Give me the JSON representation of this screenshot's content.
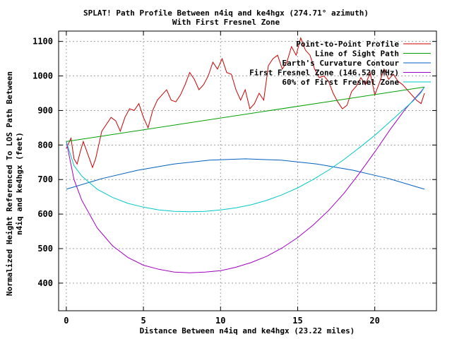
{
  "chart_data": {
    "type": "line",
    "title": "SPLAT! Path Profile Between n4iq and ke4hgx (274.71° azimuth)",
    "subtitle": "With First Fresnel Zone",
    "xlabel": "Distance Between n4iq and ke4hgx (23.22 miles)",
    "ylabel_line1": "Normalized Height Referenced To LOS Path Between",
    "ylabel_line2": "n4iq and ke4hgx (feet)",
    "xlim": [
      -0.5,
      24
    ],
    "ylim": [
      320,
      1130
    ],
    "x_ticks": [
      0,
      5,
      10,
      15,
      20
    ],
    "y_ticks": [
      400,
      500,
      600,
      700,
      800,
      900,
      1000,
      1100
    ],
    "grid": true,
    "legend_position": "top-right",
    "colors": {
      "profile": "#cc0000",
      "los": "#00a000",
      "curvature": "#0060c0",
      "fresnel": "#a000c0",
      "fresnel60": "#00c8c8"
    },
    "series": [
      {
        "name": "Point-to-Point Profile",
        "color": "#cc0000",
        "x": [
          0,
          0.3,
          0.5,
          0.7,
          0.9,
          1.1,
          1.3,
          1.5,
          1.7,
          1.9,
          2.1,
          2.3,
          2.6,
          2.9,
          3.2,
          3.5,
          3.8,
          4.1,
          4.4,
          4.7,
          5.0,
          5.3,
          5.6,
          5.9,
          6.2,
          6.5,
          6.8,
          7.1,
          7.4,
          7.7,
          8.0,
          8.3,
          8.6,
          8.9,
          9.2,
          9.5,
          9.8,
          10.1,
          10.4,
          10.7,
          11.0,
          11.3,
          11.6,
          11.9,
          12.2,
          12.5,
          12.8,
          13.1,
          13.4,
          13.7,
          14.0,
          14.3,
          14.6,
          14.9,
          15.2,
          15.5,
          15.8,
          16.1,
          16.4,
          16.7,
          17.0,
          17.3,
          17.6,
          17.9,
          18.2,
          18.5,
          18.8,
          19.1,
          19.4,
          19.7,
          20.0,
          20.3,
          20.6,
          20.9,
          21.2,
          21.5,
          21.8,
          22.1,
          22.4,
          22.7,
          23.0,
          23.22
        ],
        "values": [
          790,
          820,
          760,
          745,
          780,
          810,
          785,
          760,
          735,
          760,
          800,
          840,
          860,
          880,
          870,
          840,
          880,
          905,
          900,
          920,
          880,
          850,
          900,
          930,
          945,
          960,
          930,
          925,
          945,
          975,
          1010,
          990,
          960,
          975,
          1000,
          1040,
          1020,
          1050,
          1010,
          1005,
          960,
          930,
          960,
          905,
          920,
          950,
          930,
          1030,
          1050,
          1060,
          1020,
          1040,
          1085,
          1060,
          1110,
          1075,
          1060,
          1020,
          995,
          1000,
          985,
          950,
          925,
          905,
          915,
          955,
          970,
          995,
          975,
          1010,
          945,
          980,
          1020,
          990,
          1005,
          985,
          975,
          960,
          945,
          930,
          920,
          950
        ]
      },
      {
        "name": "Line of Sight Path",
        "color": "#00a000",
        "x": [
          0,
          23.22
        ],
        "values": [
          810,
          968
        ]
      },
      {
        "name": "Earth's Curvature Contour",
        "color": "#0060c0",
        "x": [
          0,
          2.32,
          4.64,
          6.97,
          9.29,
          11.61,
          13.93,
          16.25,
          18.58,
          20.9,
          23.22
        ],
        "values": [
          672,
          703,
          727,
          745,
          756,
          760,
          756,
          745,
          727,
          703,
          672
        ]
      },
      {
        "name": "First Fresnel Zone (146.520 MHz)",
        "color": "#a000c0",
        "x": [
          0,
          0.5,
          1.0,
          2.0,
          3.0,
          4.0,
          5.0,
          6.0,
          7.0,
          8.0,
          9.0,
          10.0,
          11.0,
          12.0,
          13.0,
          14.0,
          15.0,
          16.0,
          17.0,
          18.0,
          19.0,
          20.0,
          21.0,
          22.0,
          22.5,
          23.0,
          23.22
        ],
        "values": [
          810,
          700,
          640,
          560,
          508,
          474,
          452,
          440,
          432,
          430,
          432,
          436,
          446,
          460,
          478,
          502,
          532,
          568,
          610,
          660,
          718,
          780,
          845,
          905,
          930,
          955,
          968
        ]
      },
      {
        "name": "60% of First Fresnel Zone",
        "color": "#00c8c8",
        "x": [
          0,
          0.5,
          1.0,
          2.0,
          3.0,
          4.0,
          5.0,
          6.0,
          7.0,
          8.0,
          9.0,
          10.0,
          11.0,
          12.0,
          13.0,
          14.0,
          15.0,
          16.0,
          17.0,
          18.0,
          19.0,
          20.0,
          21.0,
          22.0,
          22.5,
          23.0,
          23.22
        ],
        "values": [
          810,
          740,
          710,
          672,
          648,
          631,
          620,
          612,
          608,
          607,
          608,
          612,
          618,
          627,
          640,
          656,
          676,
          700,
          727,
          758,
          792,
          828,
          868,
          908,
          928,
          952,
          968
        ]
      }
    ]
  }
}
